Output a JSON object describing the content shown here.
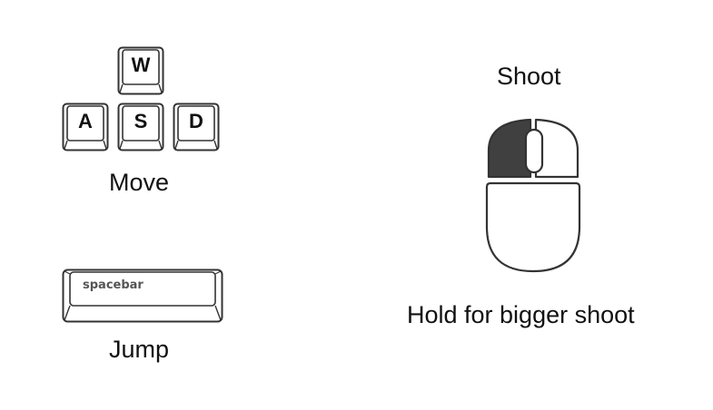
{
  "keyboard": {
    "keys": [
      {
        "label": "W"
      },
      {
        "label": "A"
      },
      {
        "label": "S"
      },
      {
        "label": "D"
      }
    ],
    "move_label": "Move",
    "spacebar_label": "spacebar",
    "jump_label": "Jump"
  },
  "mouse": {
    "shoot_label": "Shoot",
    "hold_label": "Hold for bigger shoot",
    "highlighted_button": "left",
    "highlight_color": "#404040"
  }
}
